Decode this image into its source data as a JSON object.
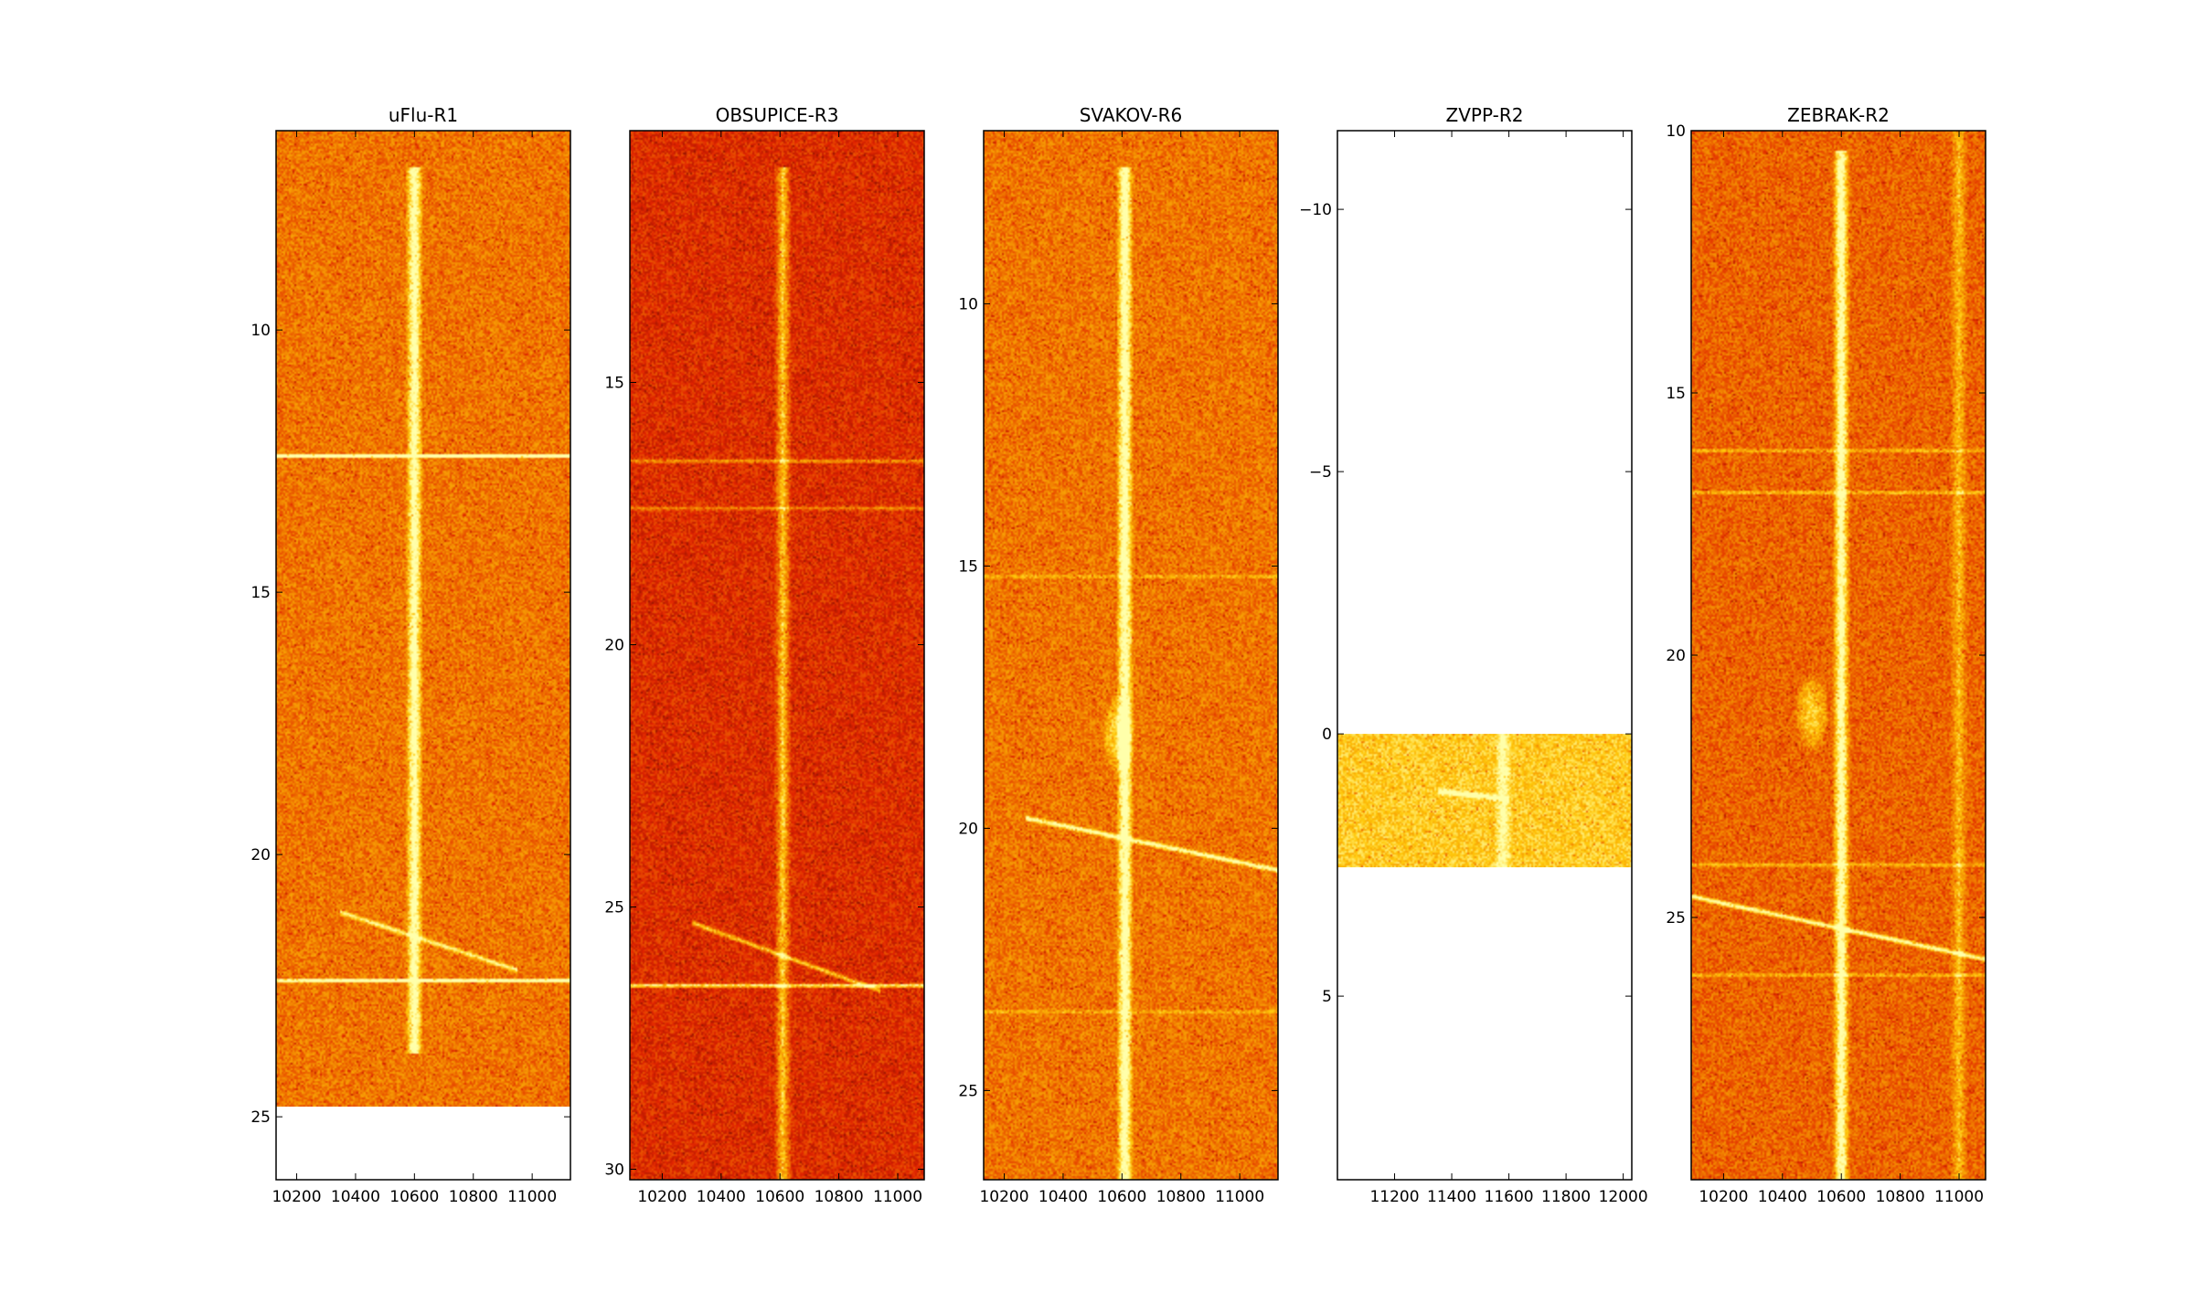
{
  "chart_data": [
    {
      "type": "heatmap",
      "title": "uFlu-R1",
      "xlabel": "",
      "ylabel": "",
      "xlim": [
        10130,
        11130
      ],
      "ylim": [
        26.2,
        6.2
      ],
      "y_inverted": true,
      "xticks": [
        10200,
        10400,
        10600,
        10800,
        11000
      ],
      "yticks": [
        10,
        15,
        20,
        25
      ],
      "data_extent_y": [
        6.2,
        24.8
      ],
      "background": "#f08c00",
      "features": {
        "vertical_lines": [
          {
            "x": 10600,
            "from": 6.9,
            "to": 23.8,
            "strength": 0.75
          }
        ],
        "horizontal_lines": [
          {
            "y": 12.4,
            "strength": 0.9
          },
          {
            "y": 22.4,
            "strength": 0.85
          }
        ],
        "chirps": [
          {
            "x1": 10350,
            "y1": 21.1,
            "x2": 10950,
            "y2": 22.2,
            "strength": 0.55
          }
        ]
      }
    },
    {
      "type": "heatmap",
      "title": "OBSUPICE-R3",
      "xlabel": "",
      "ylabel": "",
      "xlim": [
        10090,
        11090
      ],
      "ylim": [
        30.2,
        10.2
      ],
      "y_inverted": true,
      "xticks": [
        10200,
        10400,
        10600,
        10800,
        11000
      ],
      "yticks": [
        15,
        20,
        25,
        30
      ],
      "data_extent_y": [
        10.2,
        30.2
      ],
      "background": "#e62a00",
      "features": {
        "vertical_lines": [
          {
            "x": 10610,
            "from": 10.9,
            "to": 30.2,
            "strength": 0.55
          }
        ],
        "horizontal_lines": [
          {
            "y": 16.5,
            "strength": 0.4
          },
          {
            "y": 17.4,
            "strength": 0.3
          },
          {
            "y": 26.5,
            "strength": 0.8
          }
        ],
        "chirps": [
          {
            "x1": 10300,
            "y1": 25.3,
            "x2": 10940,
            "y2": 26.6,
            "strength": 0.55
          }
        ]
      }
    },
    {
      "type": "heatmap",
      "title": "SVAKOV-R6",
      "xlabel": "",
      "ylabel": "",
      "xlim": [
        10130,
        11130
      ],
      "ylim": [
        26.7,
        6.7
      ],
      "y_inverted": true,
      "xticks": [
        10200,
        10400,
        10600,
        10800,
        11000
      ],
      "yticks": [
        10,
        15,
        20,
        25
      ],
      "data_extent_y": [
        6.7,
        26.7
      ],
      "background": "#f08c00",
      "features": {
        "vertical_lines": [
          {
            "x": 10610,
            "from": 7.4,
            "to": 26.7,
            "strength": 0.8
          }
        ],
        "horizontal_lines": [
          {
            "y": 15.2,
            "strength": 0.25
          },
          {
            "y": 23.5,
            "strength": 0.25
          }
        ],
        "chirps": [
          {
            "x1": 10270,
            "y1": 19.8,
            "x2": 11130,
            "y2": 20.8,
            "strength": 0.7
          }
        ],
        "blobs": [
          {
            "x": 10590,
            "y": 18.2,
            "r": 60,
            "strength": 0.35
          }
        ]
      }
    },
    {
      "type": "heatmap",
      "title": "ZVPP-R2",
      "xlabel": "",
      "ylabel": "",
      "xlim": [
        11000,
        12030
      ],
      "ylim": [
        8.5,
        -11.5
      ],
      "y_inverted": true,
      "xticks": [
        11200,
        11400,
        11600,
        11800,
        12000
      ],
      "yticks": [
        -10,
        -5,
        0,
        5
      ],
      "data_extent_y": [
        0.0,
        2.55
      ],
      "background": "#ffd21a",
      "features": {
        "vertical_lines": [
          {
            "x": 11580,
            "from": 0.0,
            "to": 2.55,
            "strength": 0.35
          }
        ],
        "horizontal_lines": [],
        "chirps": [
          {
            "x1": 11350,
            "y1": 1.1,
            "x2": 11600,
            "y2": 1.25,
            "strength": 0.6
          }
        ]
      }
    },
    {
      "type": "heatmap",
      "title": "ZEBRAK-R2",
      "xlabel": "",
      "ylabel": "",
      "xlim": [
        10090,
        11090
      ],
      "ylim": [
        30.0,
        10.0
      ],
      "y_inverted": true,
      "xticks": [
        10200,
        10400,
        10600,
        10800,
        11000
      ],
      "yticks": [
        10,
        15,
        20,
        25
      ],
      "data_extent_y": [
        10.0,
        30.0
      ],
      "background": "#f07000",
      "features": {
        "vertical_lines": [
          {
            "x": 10600,
            "from": 10.4,
            "to": 30.0,
            "strength": 0.8
          },
          {
            "x": 11000,
            "from": 10.0,
            "to": 30.0,
            "strength": 0.3
          }
        ],
        "horizontal_lines": [
          {
            "y": 16.1,
            "strength": 0.3
          },
          {
            "y": 16.9,
            "strength": 0.35
          },
          {
            "y": 24.0,
            "strength": 0.3
          },
          {
            "y": 26.1,
            "strength": 0.3
          }
        ],
        "chirps": [
          {
            "x1": 10090,
            "y1": 24.6,
            "x2": 11090,
            "y2": 25.8,
            "strength": 0.7
          }
        ],
        "blobs": [
          {
            "x": 10500,
            "y": 21.1,
            "r": 60,
            "strength": 0.35
          }
        ]
      }
    }
  ]
}
